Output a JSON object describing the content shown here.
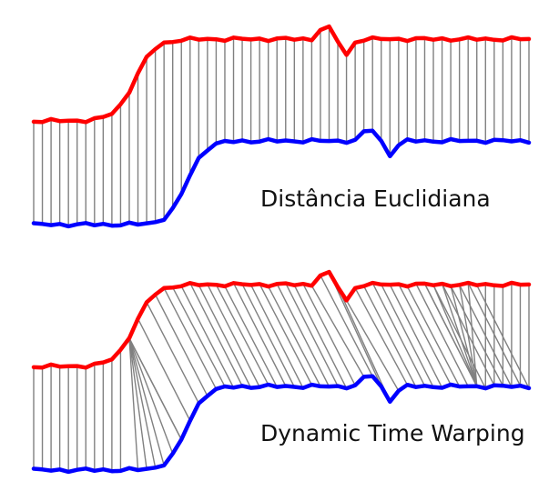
{
  "labels": {
    "euclidean": "Distância Euclidiana",
    "dtw": "Dynamic Time Warping"
  },
  "colors": {
    "series_a": "#ff0000",
    "series_b": "#0000ff",
    "connector": "#808080",
    "background": "#ffffff"
  }
}
